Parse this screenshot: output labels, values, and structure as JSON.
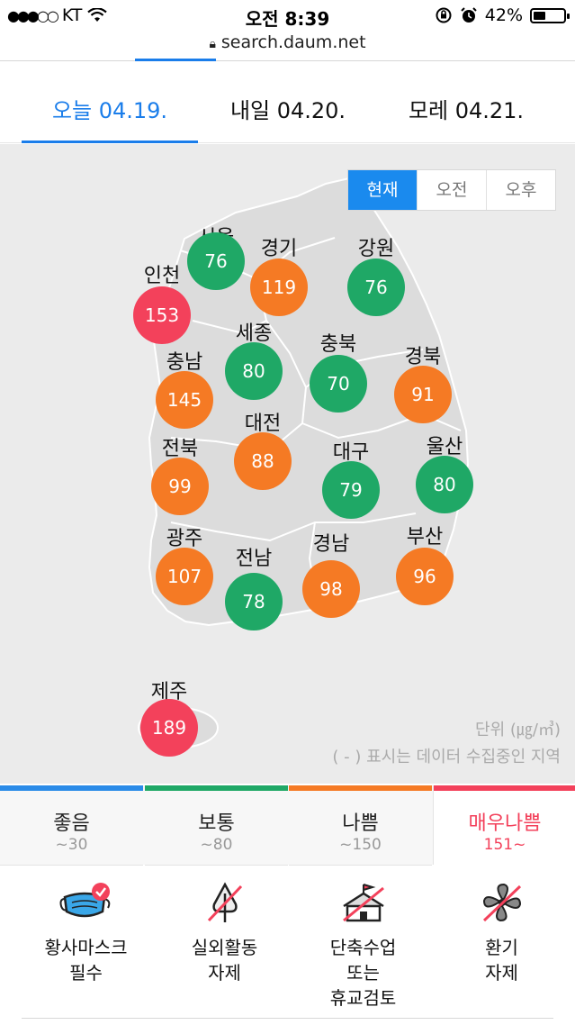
{
  "status_bar": {
    "carrier": "KT",
    "time": "오전 8:39",
    "battery": "42%",
    "battery_level": 0.42
  },
  "url": "search.daum.net",
  "date_tabs": [
    {
      "label": "오늘 04.19.",
      "active": true
    },
    {
      "label": "내일 04.20.",
      "active": false
    },
    {
      "label": "모레 04.21.",
      "active": false
    }
  ],
  "time_toggle": [
    {
      "label": "현재",
      "active": true
    },
    {
      "label": "오전",
      "active": false
    },
    {
      "label": "오후",
      "active": false
    }
  ],
  "regions": [
    {
      "name": "서울",
      "value": "76",
      "level": "good"
    },
    {
      "name": "경기",
      "value": "119",
      "level": "bad"
    },
    {
      "name": "강원",
      "value": "76",
      "level": "good"
    },
    {
      "name": "인천",
      "value": "153",
      "level": "very_bad"
    },
    {
      "name": "세종",
      "value": "80",
      "level": "good"
    },
    {
      "name": "충북",
      "value": "70",
      "level": "good"
    },
    {
      "name": "충남",
      "value": "145",
      "level": "bad"
    },
    {
      "name": "경북",
      "value": "91",
      "level": "bad"
    },
    {
      "name": "대전",
      "value": "88",
      "level": "bad"
    },
    {
      "name": "전북",
      "value": "99",
      "level": "bad"
    },
    {
      "name": "대구",
      "value": "79",
      "level": "good"
    },
    {
      "name": "울산",
      "value": "80",
      "level": "good"
    },
    {
      "name": "광주",
      "value": "107",
      "level": "bad"
    },
    {
      "name": "전남",
      "value": "78",
      "level": "good"
    },
    {
      "name": "경남",
      "value": "98",
      "level": "bad"
    },
    {
      "name": "부산",
      "value": "96",
      "level": "bad"
    },
    {
      "name": "제주",
      "value": "189",
      "level": "very_bad"
    }
  ],
  "unit_text": "단위 (㎍/㎥)",
  "note_text": "( - ) 표시는 데이터 수집중인 지역",
  "colors": {
    "good": "#1fa866",
    "normal": "#1fa866",
    "bad": "#f57a24",
    "very_bad": "#f3415b",
    "accent": "#1a7dea"
  },
  "legend": [
    {
      "name": "좋음",
      "range": "~30",
      "color": "#2a8be8",
      "active": false
    },
    {
      "name": "보통",
      "range": "~80",
      "color": "#1fa866",
      "active": false
    },
    {
      "name": "나쁨",
      "range": "~150",
      "color": "#f57a24",
      "active": false
    },
    {
      "name": "매우나쁨",
      "range": "151~",
      "color": "#f3415b",
      "active": true
    }
  ],
  "advice": [
    {
      "icon": "mask-icon",
      "text": "황사마스크\n필수"
    },
    {
      "icon": "no-outdoor-icon",
      "text": "실외활동\n자제"
    },
    {
      "icon": "school-icon",
      "text": "단축수업\n또는\n휴교검토"
    },
    {
      "icon": "no-ventilation-icon",
      "text": "환기\n자제"
    }
  ]
}
